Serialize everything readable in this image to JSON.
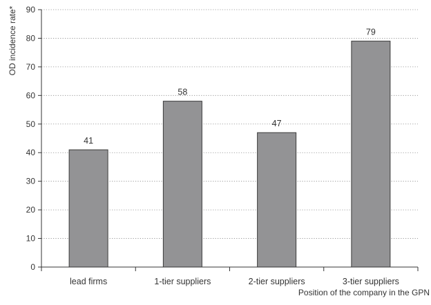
{
  "chart_data": {
    "type": "bar",
    "title": "",
    "xlabel": "Position of the company in the GPN",
    "ylabel": "OD incidence rate*",
    "categories": [
      "lead firms",
      "1-tier suppliers",
      "2-tier suppliers",
      "3-tier suppliers"
    ],
    "series": [
      {
        "values": [
          41,
          58,
          47,
          79
        ]
      }
    ],
    "data_labels": [
      "41",
      "58",
      "47",
      "79"
    ],
    "ylim": [
      0,
      90
    ],
    "yticks": [
      0,
      10,
      20,
      30,
      40,
      50,
      60,
      70,
      80,
      90
    ],
    "grid": {
      "y": true,
      "style": "dotted"
    },
    "legend": "none",
    "colors": {
      "bar_fill": "#939395",
      "bar_stroke": "#3a3a3a",
      "axis": "#333333",
      "grid": "#888888"
    }
  }
}
